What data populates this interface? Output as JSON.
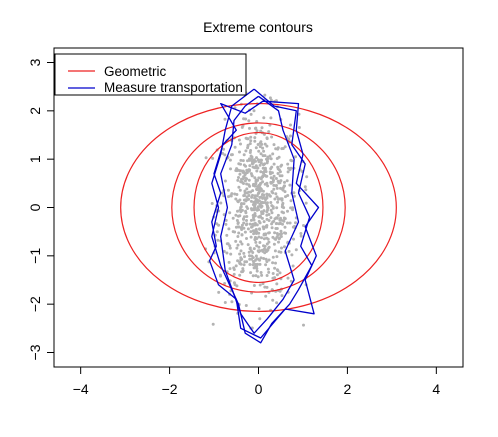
{
  "chart_data": {
    "type": "scatter",
    "title": "Extreme contours",
    "xlabel": "",
    "ylabel": "",
    "xlim": [
      -4.6,
      4.6
    ],
    "ylim": [
      -3.3,
      3.3
    ],
    "x_ticks": [
      -4,
      -2,
      0,
      2,
      4
    ],
    "x_tick_labels": [
      "−4",
      "−2",
      "0",
      "2",
      "4"
    ],
    "y_ticks": [
      -3,
      -2,
      -1,
      0,
      1,
      2,
      3
    ],
    "y_tick_labels": [
      "−3",
      "−2",
      "−1",
      "0",
      "1",
      "2",
      "3"
    ],
    "legend": {
      "position": "top-left",
      "entries": [
        {
          "label": "Geometric",
          "color": "#ee2222"
        },
        {
          "label": "Measure transportation",
          "color": "#0000cc"
        }
      ]
    },
    "colors": {
      "geometric": "#ee2222",
      "transport": "#0000cc",
      "points": "#b3b3b3"
    },
    "points": {
      "n": 800,
      "x_sd": 0.45,
      "y_sd": 0.95
    },
    "series": [
      {
        "name": "Geometric",
        "kind": "contours",
        "contours": [
          {
            "cx": 0,
            "cy": 0,
            "rx": 1.45,
            "ry": 1.55
          },
          {
            "cx": 0,
            "cy": 0,
            "rx": 1.95,
            "ry": 1.75
          },
          {
            "cx": 0,
            "cy": 0,
            "rx": 3.1,
            "ry": 2.15
          }
        ]
      },
      {
        "name": "Measure transportation",
        "kind": "polygons",
        "polygons": [
          [
            [
              0,
              2.3
            ],
            [
              0.45,
              2.0
            ],
            [
              0.55,
              1.6
            ],
            [
              0.8,
              1.0
            ],
            [
              0.75,
              0.3
            ],
            [
              0.9,
              -0.3
            ],
            [
              0.6,
              -0.9
            ],
            [
              0.8,
              -1.5
            ],
            [
              0.55,
              -1.9
            ],
            [
              0.2,
              -2.3
            ],
            [
              -0.1,
              -2.6
            ],
            [
              -0.4,
              -2.2
            ],
            [
              -0.55,
              -1.8
            ],
            [
              -0.75,
              -1.3
            ],
            [
              -0.85,
              -0.6
            ],
            [
              -0.7,
              0
            ],
            [
              -0.85,
              0.7
            ],
            [
              -0.6,
              1.3
            ],
            [
              -0.55,
              1.8
            ],
            [
              -0.3,
              2.1
            ],
            [
              0,
              2.3
            ]
          ],
          [
            [
              -0.1,
              2.45
            ],
            [
              0.35,
              2.1
            ],
            [
              0.85,
              2.0
            ],
            [
              0.75,
              1.3
            ],
            [
              1.05,
              0.9
            ],
            [
              0.9,
              0.3
            ],
            [
              1.15,
              -0.2
            ],
            [
              0.95,
              -0.8
            ],
            [
              1.2,
              -1.2
            ],
            [
              0.9,
              -1.7
            ],
            [
              0.7,
              -2.0
            ],
            [
              0.3,
              -2.4
            ],
            [
              0.05,
              -2.8
            ],
            [
              -0.3,
              -2.6
            ],
            [
              -0.45,
              -2.0
            ],
            [
              -0.6,
              -1.7
            ],
            [
              -0.85,
              -1.2
            ],
            [
              -1.05,
              -0.6
            ],
            [
              -0.9,
              0
            ],
            [
              -1.05,
              0.5
            ],
            [
              -0.85,
              1.1
            ],
            [
              -0.75,
              1.6
            ],
            [
              -0.6,
              2.1
            ],
            [
              -0.1,
              2.45
            ]
          ],
          [
            [
              0.1,
              2.2
            ],
            [
              0.9,
              2.15
            ],
            [
              0.85,
              1.6
            ],
            [
              1.0,
              1.1
            ],
            [
              0.85,
              0.5
            ],
            [
              1.35,
              0
            ],
            [
              1.05,
              -0.4
            ],
            [
              1.3,
              -1.0
            ],
            [
              1.05,
              -1.5
            ],
            [
              1.25,
              -2.2
            ],
            [
              0.6,
              -2.1
            ],
            [
              0.05,
              -2.7
            ],
            [
              -0.4,
              -2.5
            ],
            [
              -0.5,
              -1.9
            ],
            [
              -0.9,
              -1.6
            ],
            [
              -1.1,
              -1.1
            ],
            [
              -0.95,
              -0.8
            ],
            [
              -1.05,
              -0.3
            ],
            [
              -0.85,
              0.3
            ],
            [
              -1.0,
              0.7
            ],
            [
              -0.8,
              1.3
            ],
            [
              -0.5,
              1.6
            ],
            [
              -0.85,
              2.15
            ],
            [
              -0.3,
              1.95
            ],
            [
              0.1,
              2.2
            ]
          ]
        ]
      }
    ]
  }
}
